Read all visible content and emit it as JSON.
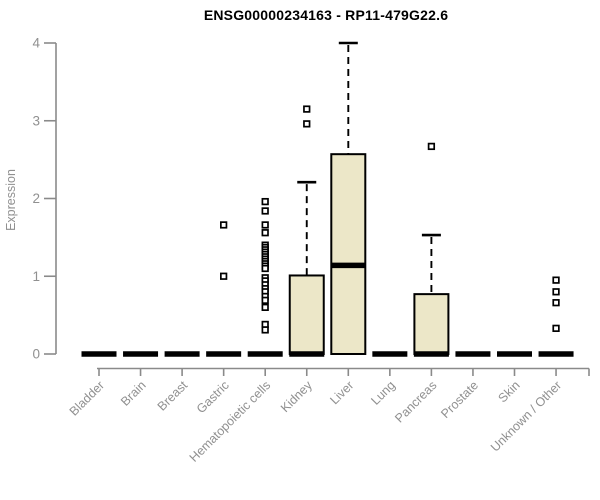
{
  "chart_data": {
    "type": "boxplot",
    "title": "ENSG00000234163 - RP11-479G22.6",
    "ylabel": "Expression",
    "xlabel": "",
    "ylim": [
      0,
      4
    ],
    "yticks": [
      0,
      1,
      2,
      3,
      4
    ],
    "grid": false,
    "legend": "none",
    "categories": [
      "Bladder",
      "Brain",
      "Breast",
      "Gastric",
      "Hematopoietic cells",
      "Kidney",
      "Liver",
      "Lung",
      "Pancreas",
      "Prostate",
      "Skin",
      "Unknown / Other"
    ],
    "boxes": [
      {
        "category": "Bladder",
        "whisker_low": 0,
        "q1": 0,
        "median": 0,
        "q3": 0,
        "whisker_high": 0,
        "outliers": []
      },
      {
        "category": "Brain",
        "whisker_low": 0,
        "q1": 0,
        "median": 0,
        "q3": 0,
        "whisker_high": 0,
        "outliers": []
      },
      {
        "category": "Breast",
        "whisker_low": 0,
        "q1": 0,
        "median": 0,
        "q3": 0,
        "whisker_high": 0,
        "outliers": []
      },
      {
        "category": "Gastric",
        "whisker_low": 0,
        "q1": 0,
        "median": 0,
        "q3": 0,
        "whisker_high": 0,
        "outliers": [
          1.66,
          1.0
        ]
      },
      {
        "category": "Hematopoietic cells",
        "whisker_low": 0,
        "q1": 0,
        "median": 0,
        "q3": 0,
        "whisker_high": 0,
        "outliers": [
          1.96,
          1.84,
          1.66,
          1.56,
          1.4,
          1.37,
          1.34,
          1.31,
          1.28,
          1.25,
          1.22,
          1.19,
          1.16,
          1.13,
          1.1,
          0.98,
          0.94,
          0.89,
          0.84,
          0.8,
          0.74,
          0.69,
          0.6,
          0.38,
          0.31
        ]
      },
      {
        "category": "Kidney",
        "whisker_low": 0,
        "q1": 0,
        "median": 0,
        "q3": 1.01,
        "whisker_high": 2.21,
        "outliers": [
          3.15,
          2.96
        ]
      },
      {
        "category": "Liver",
        "whisker_low": 0,
        "q1": 0,
        "median": 1.14,
        "q3": 2.57,
        "whisker_high": 4.0,
        "outliers": []
      },
      {
        "category": "Lung",
        "whisker_low": 0,
        "q1": 0,
        "median": 0,
        "q3": 0,
        "whisker_high": 0,
        "outliers": []
      },
      {
        "category": "Pancreas",
        "whisker_low": 0,
        "q1": 0,
        "median": 0,
        "q3": 0.77,
        "whisker_high": 1.53,
        "outliers": [
          2.67
        ]
      },
      {
        "category": "Prostate",
        "whisker_low": 0,
        "q1": 0,
        "median": 0,
        "q3": 0,
        "whisker_high": 0,
        "outliers": []
      },
      {
        "category": "Skin",
        "whisker_low": 0,
        "q1": 0,
        "median": 0,
        "q3": 0,
        "whisker_high": 0,
        "outliers": []
      },
      {
        "category": "Unknown / Other",
        "whisker_low": 0,
        "q1": 0,
        "median": 0,
        "q3": 0,
        "whisker_high": 0,
        "outliers": [
          0.95,
          0.8,
          0.66,
          0.33
        ]
      }
    ],
    "colors": {
      "box_fill": "#ECE7C8",
      "box_border": "#000000",
      "median": "#000000",
      "whisker": "#000000",
      "outlier_fill": "#FFFFFF",
      "outlier_border": "#000000",
      "axis": "#8A8A8A",
      "tick_text": "#909090",
      "title_text": "#000000",
      "background": "#FFFFFF"
    }
  }
}
